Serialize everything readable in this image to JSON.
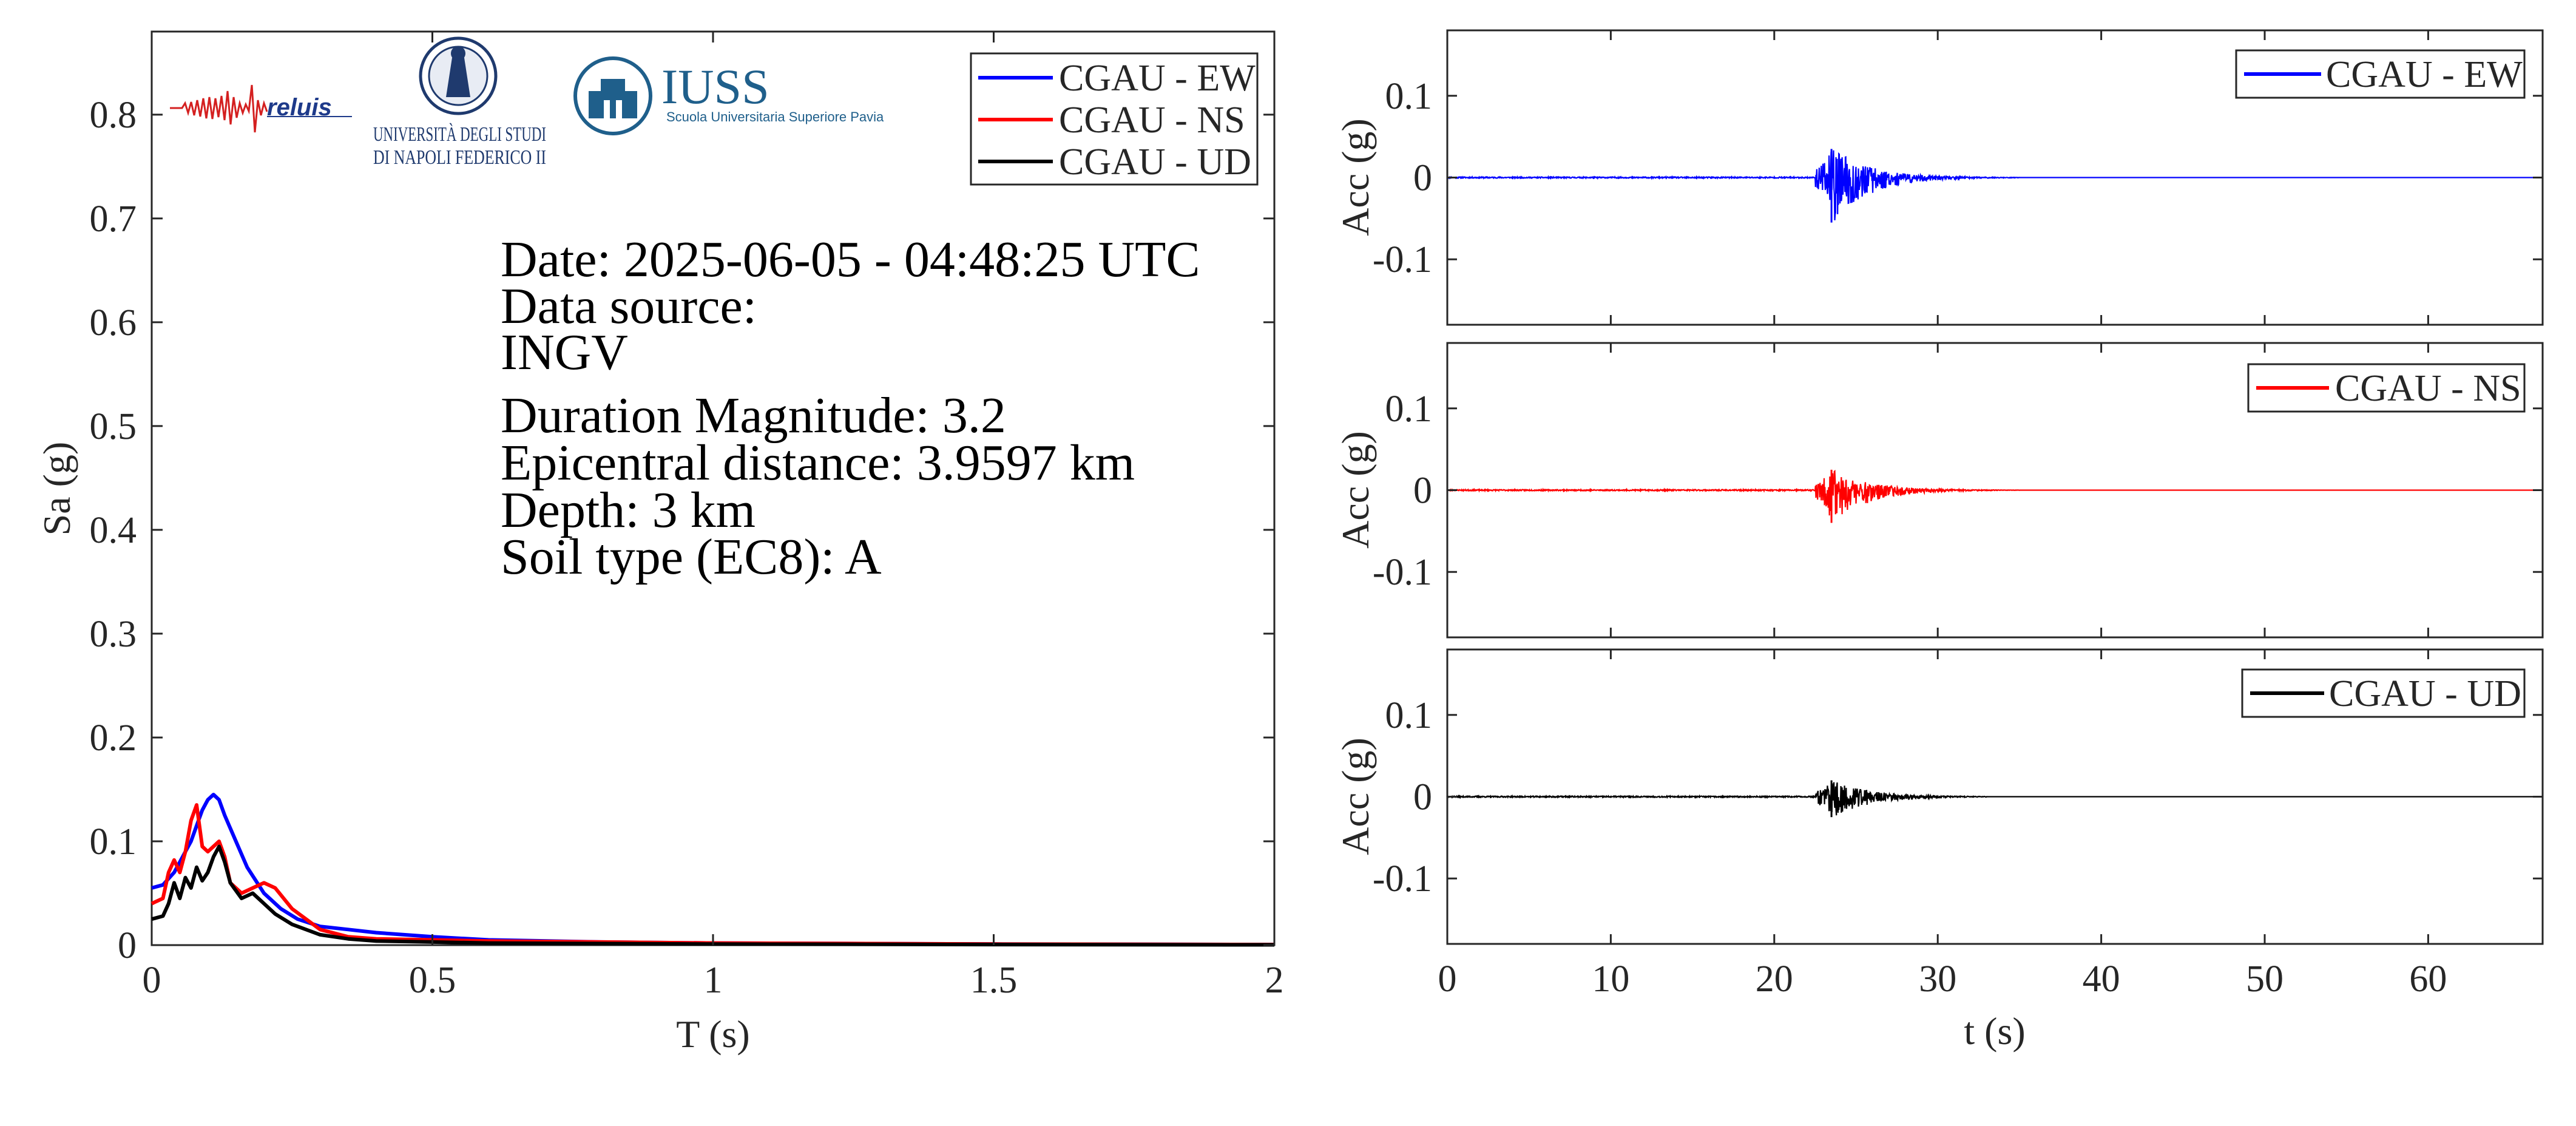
{
  "chart_data": [
    {
      "type": "line",
      "xlabel": "T (s)",
      "ylabel": "Sa (g)",
      "xlim": [
        0,
        2
      ],
      "ylim": [
        0,
        0.88
      ],
      "xticks": [
        0,
        0.5,
        1,
        1.5,
        2
      ],
      "xtick_labels": [
        "0",
        "0.5",
        "1",
        "1.5",
        "2"
      ],
      "yticks": [
        0,
        0.1,
        0.2,
        0.3,
        0.4,
        0.5,
        0.6,
        0.7,
        0.8
      ],
      "ytick_labels": [
        "0",
        "0.1",
        "0.2",
        "0.3",
        "0.4",
        "0.5",
        "0.6",
        "0.7",
        "0.8"
      ],
      "grid": false,
      "legend_position": "top-right",
      "annotations": [
        "Date: 2025-06-05 - 04:48:25 UTC",
        "Data source:",
        "INGV",
        "Duration Magnitude: 3.2",
        "Epicentral distance: 3.9597 km",
        "Depth: 3 km",
        "Soil type (EC8): A"
      ],
      "logos": [
        {
          "name": "reluis",
          "text": "reluis"
        },
        {
          "name": "unina",
          "line1": "UNIVERSITÀ DEGLI STUDI",
          "line2": "DI NAPOLI FEDERICO II"
        },
        {
          "name": "iuss",
          "title": "IUSS",
          "subtitle": "Scuola Universitaria Superiore Pavia"
        }
      ],
      "series": [
        {
          "name": "CGAU - EW",
          "color": "#0000ff",
          "x": [
            0,
            0.02,
            0.04,
            0.05,
            0.06,
            0.07,
            0.08,
            0.09,
            0.1,
            0.11,
            0.12,
            0.13,
            0.15,
            0.17,
            0.2,
            0.23,
            0.26,
            0.3,
            0.35,
            0.4,
            0.5,
            0.6,
            0.8,
            1.0,
            1.5,
            2.0
          ],
          "y": [
            0.055,
            0.058,
            0.07,
            0.08,
            0.09,
            0.1,
            0.115,
            0.13,
            0.14,
            0.145,
            0.14,
            0.125,
            0.1,
            0.075,
            0.05,
            0.035,
            0.025,
            0.018,
            0.015,
            0.012,
            0.008,
            0.005,
            0.003,
            0.002,
            0.001,
            0.0005
          ]
        },
        {
          "name": "CGAU - NS",
          "color": "#ff0000",
          "x": [
            0,
            0.02,
            0.03,
            0.04,
            0.05,
            0.06,
            0.07,
            0.08,
            0.09,
            0.1,
            0.11,
            0.12,
            0.13,
            0.14,
            0.16,
            0.18,
            0.2,
            0.22,
            0.25,
            0.3,
            0.35,
            0.4,
            0.5,
            0.6,
            0.8,
            1.0,
            1.5,
            2.0
          ],
          "y": [
            0.04,
            0.045,
            0.07,
            0.082,
            0.07,
            0.09,
            0.12,
            0.135,
            0.095,
            0.09,
            0.095,
            0.1,
            0.085,
            0.06,
            0.05,
            0.055,
            0.06,
            0.055,
            0.035,
            0.015,
            0.008,
            0.006,
            0.005,
            0.004,
            0.003,
            0.002,
            0.001,
            0.0005
          ]
        },
        {
          "name": "CGAU - UD",
          "color": "#000000",
          "x": [
            0,
            0.02,
            0.03,
            0.04,
            0.05,
            0.06,
            0.07,
            0.08,
            0.09,
            0.1,
            0.11,
            0.12,
            0.13,
            0.14,
            0.16,
            0.18,
            0.2,
            0.22,
            0.25,
            0.3,
            0.35,
            0.4,
            0.5,
            0.6,
            0.8,
            1.0,
            1.5,
            2.0
          ],
          "y": [
            0.025,
            0.028,
            0.04,
            0.06,
            0.045,
            0.065,
            0.055,
            0.075,
            0.062,
            0.07,
            0.085,
            0.095,
            0.08,
            0.06,
            0.045,
            0.05,
            0.04,
            0.03,
            0.02,
            0.01,
            0.006,
            0.004,
            0.003,
            0.002,
            0.0015,
            0.001,
            0.0005,
            0.0003
          ]
        }
      ]
    },
    {
      "type": "line",
      "xlabel": "",
      "ylabel": "Acc (g)",
      "xlim": [
        0,
        67
      ],
      "ylim": [
        -0.18,
        0.18
      ],
      "xticks": [
        0,
        10,
        20,
        30,
        40,
        50,
        60
      ],
      "yticks": [
        -0.1,
        0,
        0.1
      ],
      "ytick_labels": [
        "-0.1",
        "0",
        "0.1"
      ],
      "grid": false,
      "legend_position": "top-right",
      "series": [
        {
          "name": "CGAU - EW",
          "color": "#0000ff",
          "peak_pos": 0.035,
          "peak_neg": -0.055,
          "onset": 22.5,
          "decay_end": 35
        }
      ]
    },
    {
      "type": "line",
      "xlabel": "",
      "ylabel": "Acc (g)",
      "xlim": [
        0,
        67
      ],
      "ylim": [
        -0.18,
        0.18
      ],
      "xticks": [
        0,
        10,
        20,
        30,
        40,
        50,
        60
      ],
      "yticks": [
        -0.1,
        0,
        0.1
      ],
      "ytick_labels": [
        "-0.1",
        "0",
        "0.1"
      ],
      "grid": false,
      "legend_position": "top-right",
      "series": [
        {
          "name": "CGAU - NS",
          "color": "#ff0000",
          "peak_pos": 0.025,
          "peak_neg": -0.04,
          "onset": 22.5,
          "decay_end": 35
        }
      ]
    },
    {
      "type": "line",
      "xlabel": "t (s)",
      "ylabel": "Acc (g)",
      "xlim": [
        0,
        67
      ],
      "ylim": [
        -0.18,
        0.18
      ],
      "xticks": [
        0,
        10,
        20,
        30,
        40,
        50,
        60
      ],
      "xtick_labels": [
        "0",
        "10",
        "20",
        "30",
        "40",
        "50",
        "60"
      ],
      "yticks": [
        -0.1,
        0,
        0.1
      ],
      "ytick_labels": [
        "-0.1",
        "0",
        "0.1"
      ],
      "grid": false,
      "legend_position": "top-right",
      "series": [
        {
          "name": "CGAU - UD",
          "color": "#000000",
          "peak_pos": 0.02,
          "peak_neg": -0.025,
          "onset": 22.5,
          "decay_end": 33
        }
      ]
    }
  ]
}
